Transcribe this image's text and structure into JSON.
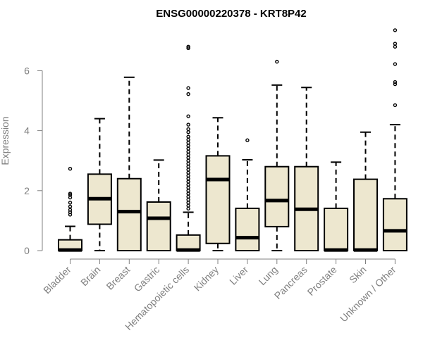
{
  "chart_data": {
    "type": "boxplot",
    "title": "ENSG00000220378 - KRT8P42",
    "xlabel": "",
    "ylabel": "Expression",
    "ylim": [
      0,
      7.5
    ],
    "yticks": [
      0,
      2,
      4,
      6
    ],
    "grid": false,
    "colors": {
      "box_fill": "#ede7cf",
      "box_stroke": "#000000",
      "axis": "#808080",
      "title": "#000000"
    },
    "categories": [
      "Bladder",
      "Brain",
      "Breast",
      "Gastric",
      "Hematopoietic cells",
      "Kidney",
      "Liver",
      "Lung",
      "Pancreas",
      "Prostate",
      "Skin",
      "Unknown / Other"
    ],
    "boxes": [
      {
        "name": "Bladder",
        "min": 0,
        "q1": 0,
        "median": 0.02,
        "q3": 0.36,
        "max": 0.81,
        "outliers": [
          1.2,
          1.28,
          1.36,
          1.47,
          1.6,
          1.77,
          1.86,
          1.9,
          2.73
        ]
      },
      {
        "name": "Brain",
        "min": 0,
        "q1": 0.88,
        "median": 1.73,
        "q3": 2.55,
        "max": 4.4,
        "outliers": []
      },
      {
        "name": "Breast",
        "min": 0,
        "q1": 0,
        "median": 1.3,
        "q3": 2.4,
        "max": 5.78,
        "outliers": []
      },
      {
        "name": "Gastric",
        "min": 0,
        "q1": 0,
        "median": 1.08,
        "q3": 1.62,
        "max": 3.02,
        "outliers": []
      },
      {
        "name": "Hematopoietic cells",
        "min": 0,
        "q1": 0,
        "median": 0.02,
        "q3": 0.52,
        "max": 1.28,
        "outliers": [
          1.4,
          1.5,
          1.6,
          1.7,
          1.8,
          1.9,
          2.0,
          2.1,
          2.2,
          2.3,
          2.4,
          2.5,
          2.6,
          2.7,
          2.8,
          2.9,
          3.0,
          3.1,
          3.2,
          3.3,
          3.4,
          3.5,
          3.6,
          3.7,
          3.8,
          3.95,
          4.05,
          4.2,
          4.48,
          5.22,
          5.42,
          6.75,
          6.8
        ]
      },
      {
        "name": "Kidney",
        "min": 0,
        "q1": 0.24,
        "median": 2.37,
        "q3": 3.16,
        "max": 4.43,
        "outliers": []
      },
      {
        "name": "Liver",
        "min": 0,
        "q1": 0,
        "median": 0.43,
        "q3": 1.41,
        "max": 3.03,
        "outliers": [
          3.68
        ]
      },
      {
        "name": "Lung",
        "min": 0,
        "q1": 0.8,
        "median": 1.67,
        "q3": 2.8,
        "max": 5.52,
        "outliers": [
          6.3
        ]
      },
      {
        "name": "Pancreas",
        "min": 0,
        "q1": 0,
        "median": 1.38,
        "q3": 2.8,
        "max": 5.44,
        "outliers": []
      },
      {
        "name": "Prostate",
        "min": 0,
        "q1": 0,
        "median": 0.02,
        "q3": 1.41,
        "max": 2.95,
        "outliers": []
      },
      {
        "name": "Skin",
        "min": 0,
        "q1": 0,
        "median": 0.02,
        "q3": 2.38,
        "max": 3.95,
        "outliers": []
      },
      {
        "name": "Unknown / Other",
        "min": 0,
        "q1": 0,
        "median": 0.66,
        "q3": 1.73,
        "max": 4.2,
        "outliers": [
          4.85,
          5.55,
          5.62,
          6.22,
          6.8,
          6.9,
          7.35
        ]
      }
    ]
  }
}
